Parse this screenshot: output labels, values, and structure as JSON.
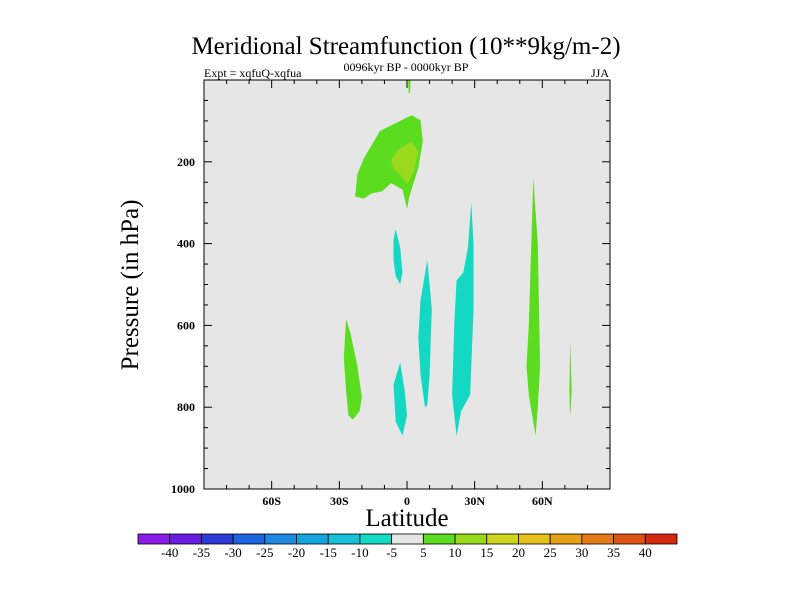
{
  "chart_data": {
    "type": "contour",
    "title": "Meridional Streamfunction (10**9kg/m-2)",
    "left_label": "Expt = xqfuQ-xqfua",
    "center_label": "0096kyr BP - 0000kyr BP",
    "right_label": "JJA",
    "xlabel": "Latitude",
    "ylabel": "Pressure (in hPa)",
    "xlim": [
      -90,
      90
    ],
    "ylim": [
      1000,
      0
    ],
    "x_ticks": [
      {
        "value": -60,
        "label": "60S"
      },
      {
        "value": -30,
        "label": "30S"
      },
      {
        "value": 0,
        "label": "0"
      },
      {
        "value": 30,
        "label": "30N"
      },
      {
        "value": 60,
        "label": "60N"
      }
    ],
    "y_ticks": [
      {
        "value": 200,
        "label": "200"
      },
      {
        "value": 400,
        "label": "400"
      },
      {
        "value": 600,
        "label": "600"
      },
      {
        "value": 800,
        "label": "800"
      },
      {
        "value": 1000,
        "label": "1000"
      }
    ],
    "background_color": "#e6e6e6",
    "colorbar": {
      "labels": [
        "-40",
        "-35",
        "-30",
        "-25",
        "-20",
        "-15",
        "-10",
        "-5",
        "5",
        "10",
        "15",
        "20",
        "25",
        "30",
        "35",
        "40"
      ],
      "colors": [
        "#8c1de8",
        "#6a1be0",
        "#2d3bd6",
        "#1c63dd",
        "#1d89e0",
        "#15a5dc",
        "#16c0d6",
        "#13d8c4",
        "#e6e6e6",
        "#5bdc1f",
        "#9ada1d",
        "#cfd61f",
        "#e4c21b",
        "#e5a018",
        "#e27b16",
        "#dd5314",
        "#d42810"
      ]
    },
    "regions": [
      {
        "name": "region-upper-positive",
        "level": "5-10",
        "color": "#5bdc1f",
        "points": [
          [
            -22,
            230
          ],
          [
            -19,
            190
          ],
          [
            -12,
            125
          ],
          [
            -6,
            108
          ],
          [
            2,
            86
          ],
          [
            6,
            98
          ],
          [
            7,
            150
          ],
          [
            5,
            215
          ],
          [
            1,
            285
          ],
          [
            0,
            315
          ],
          [
            -2,
            268
          ],
          [
            -7,
            252
          ],
          [
            -11,
            272
          ],
          [
            -16,
            278
          ],
          [
            -19,
            290
          ],
          [
            -23,
            285
          ]
        ]
      },
      {
        "name": "region-upper-core",
        "level": "10-15",
        "color": "#9ada1d",
        "points": [
          [
            -7,
            195
          ],
          [
            -4,
            172
          ],
          [
            2,
            150
          ],
          [
            5,
            175
          ],
          [
            3,
            225
          ],
          [
            0,
            255
          ],
          [
            -3,
            232
          ],
          [
            -6,
            218
          ]
        ]
      },
      {
        "name": "region-top-sliver",
        "level": "5-10",
        "color": "#5bdc1f",
        "points": [
          [
            0.5,
            0
          ],
          [
            1.6,
            0
          ],
          [
            1.3,
            32
          ],
          [
            0.8,
            32
          ]
        ]
      },
      {
        "name": "region-sh-lower-positive",
        "level": "5-10",
        "color": "#5bdc1f",
        "points": [
          [
            -27,
            585
          ],
          [
            -25,
            620
          ],
          [
            -22,
            700
          ],
          [
            -20,
            775
          ],
          [
            -21,
            810
          ],
          [
            -24,
            830
          ],
          [
            -26,
            820
          ],
          [
            -27,
            760
          ],
          [
            -28,
            680
          ]
        ]
      },
      {
        "name": "region-eq-upper-negative",
        "level": "-10 to -5",
        "color": "#13d8c4",
        "points": [
          [
            -6,
            390
          ],
          [
            -5,
            365
          ],
          [
            -3,
            410
          ],
          [
            -2,
            470
          ],
          [
            -3,
            500
          ],
          [
            -5,
            480
          ],
          [
            -6,
            440
          ]
        ]
      },
      {
        "name": "region-eq-lower-negative",
        "level": "-10 to -5",
        "color": "#13d8c4",
        "points": [
          [
            -6,
            745
          ],
          [
            -3,
            690
          ],
          [
            -1,
            760
          ],
          [
            0,
            820
          ],
          [
            -2,
            870
          ],
          [
            -5,
            835
          ]
        ]
      },
      {
        "name": "region-5n-negative",
        "level": "-10 to -5",
        "color": "#13d8c4",
        "points": [
          [
            6,
            540
          ],
          [
            9,
            440
          ],
          [
            11,
            560
          ],
          [
            10,
            720
          ],
          [
            9,
            795
          ],
          [
            8,
            800
          ],
          [
            6,
            720
          ],
          [
            5,
            630
          ]
        ]
      },
      {
        "name": "region-25n-negative",
        "level": "-10 to -5",
        "color": "#13d8c4",
        "points": [
          [
            21,
            590
          ],
          [
            22,
            490
          ],
          [
            25,
            470
          ],
          [
            27,
            410
          ],
          [
            28.5,
            300
          ],
          [
            29.5,
            400
          ],
          [
            29.5,
            560
          ],
          [
            28,
            770
          ],
          [
            24,
            810
          ],
          [
            22,
            870
          ],
          [
            20,
            770
          ]
        ]
      },
      {
        "name": "region-57n-positive",
        "level": "5-10",
        "color": "#5bdc1f",
        "points": [
          [
            54,
            600
          ],
          [
            56,
            240
          ],
          [
            58,
            400
          ],
          [
            59,
            700
          ],
          [
            58,
            800
          ],
          [
            57,
            870
          ],
          [
            54,
            770
          ],
          [
            53,
            700
          ]
        ]
      },
      {
        "name": "region-73n-positive",
        "level": "5-10",
        "color": "#5bdc1f",
        "points": [
          [
            72,
            760
          ],
          [
            72.4,
            640
          ],
          [
            73,
            760
          ],
          [
            72.5,
            815
          ],
          [
            72.2,
            815
          ]
        ]
      }
    ]
  }
}
